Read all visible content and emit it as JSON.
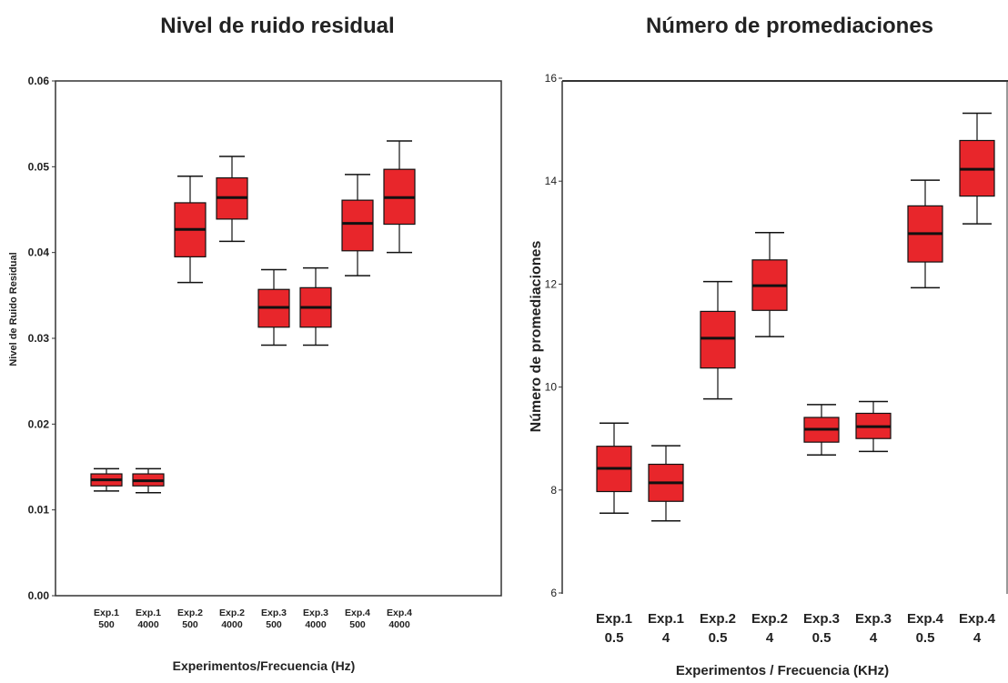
{
  "chart_data": [
    {
      "type": "box",
      "title": "Nivel de ruido residual",
      "xlabel": "Experimentos/Frecuencia (Hz)",
      "ylabel": "Nivel de Ruido Residual",
      "ylim": [
        0.0,
        0.06
      ],
      "yticks": [
        "0.00",
        "0.01",
        "0.02",
        "0.03",
        "0.04",
        "0.05",
        "0.06"
      ],
      "categories": [
        [
          "Exp.1",
          "500"
        ],
        [
          "Exp.1",
          "4000"
        ],
        [
          "Exp.2",
          "500"
        ],
        [
          "Exp.2",
          "4000"
        ],
        [
          "Exp.3",
          "500"
        ],
        [
          "Exp.3",
          "4000"
        ],
        [
          "Exp.4",
          "500"
        ],
        [
          "Exp.4",
          "4000"
        ]
      ],
      "boxes": [
        {
          "min": 0.0122,
          "q1": 0.0128,
          "median": 0.0135,
          "q3": 0.0142,
          "max": 0.0148
        },
        {
          "min": 0.012,
          "q1": 0.0128,
          "median": 0.0134,
          "q3": 0.0142,
          "max": 0.0148
        },
        {
          "min": 0.0365,
          "q1": 0.0395,
          "median": 0.0427,
          "q3": 0.0458,
          "max": 0.0489
        },
        {
          "min": 0.0413,
          "q1": 0.0439,
          "median": 0.0464,
          "q3": 0.0487,
          "max": 0.0512
        },
        {
          "min": 0.0292,
          "q1": 0.0313,
          "median": 0.0336,
          "q3": 0.0357,
          "max": 0.038
        },
        {
          "min": 0.0292,
          "q1": 0.0313,
          "median": 0.0336,
          "q3": 0.0359,
          "max": 0.0382
        },
        {
          "min": 0.0373,
          "q1": 0.0402,
          "median": 0.0434,
          "q3": 0.0461,
          "max": 0.0491
        },
        {
          "min": 0.04,
          "q1": 0.0433,
          "median": 0.0464,
          "q3": 0.0497,
          "max": 0.053
        }
      ],
      "box_color": "#e8262b",
      "grid": false
    },
    {
      "type": "box",
      "title": "Número de promediaciones",
      "xlabel": "Experimentos  /  Frecuencia (KHz)",
      "ylabel": "Número de promediaciones",
      "ylim": [
        6,
        16
      ],
      "yticks": [
        "6",
        "8",
        "10",
        "12",
        "14",
        "16"
      ],
      "categories": [
        [
          "Exp.1",
          "0.5"
        ],
        [
          "Exp.1",
          "4"
        ],
        [
          "Exp.2",
          "0.5"
        ],
        [
          "Exp.2",
          "4"
        ],
        [
          "Exp.3",
          "0.5"
        ],
        [
          "Exp.3",
          "4"
        ],
        [
          "Exp.4",
          "0.5"
        ],
        [
          "Exp.4",
          "4"
        ]
      ],
      "boxes": [
        {
          "min": 7.55,
          "q1": 7.97,
          "median": 8.42,
          "q3": 8.85,
          "max": 9.3
        },
        {
          "min": 7.4,
          "q1": 7.78,
          "median": 8.14,
          "q3": 8.5,
          "max": 8.86
        },
        {
          "min": 9.77,
          "q1": 10.37,
          "median": 10.95,
          "q3": 11.47,
          "max": 12.05
        },
        {
          "min": 10.98,
          "q1": 11.49,
          "median": 11.97,
          "q3": 12.47,
          "max": 13.0
        },
        {
          "min": 8.68,
          "q1": 8.93,
          "median": 9.18,
          "q3": 9.41,
          "max": 9.66
        },
        {
          "min": 8.75,
          "q1": 9.0,
          "median": 9.23,
          "q3": 9.49,
          "max": 9.72
        },
        {
          "min": 11.93,
          "q1": 12.43,
          "median": 12.98,
          "q3": 13.52,
          "max": 14.02
        },
        {
          "min": 13.17,
          "q1": 13.71,
          "median": 14.23,
          "q3": 14.79,
          "max": 15.32
        }
      ],
      "box_color": "#e8262b",
      "grid": false
    }
  ]
}
